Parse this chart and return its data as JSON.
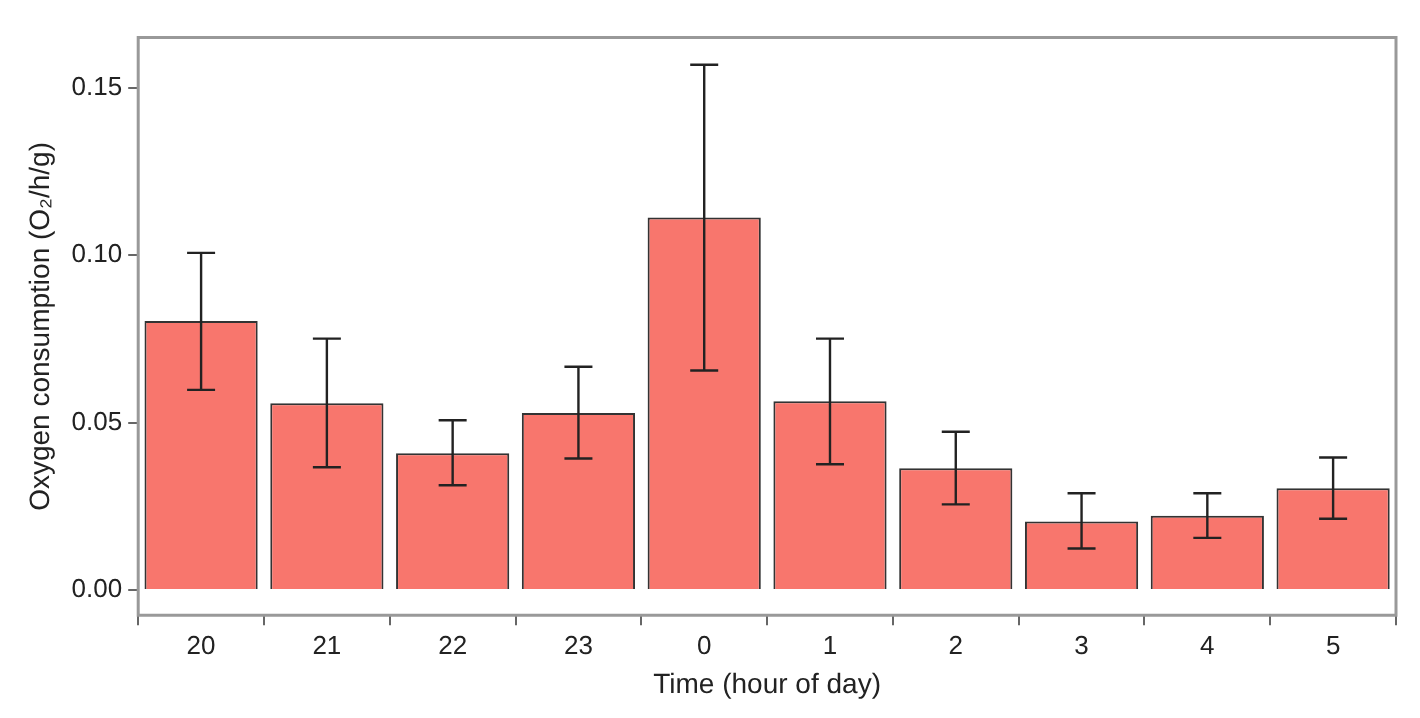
{
  "chart_data": {
    "type": "bar",
    "xlabel": "Time (hour of day)",
    "ylabel": "Oxygen consumption (O₂/h/g)",
    "categories": [
      "20",
      "21",
      "22",
      "23",
      "0",
      "1",
      "2",
      "3",
      "4",
      "5"
    ],
    "values": [
      0.0804,
      0.0558,
      0.0409,
      0.0529,
      0.1113,
      0.0564,
      0.0364,
      0.0205,
      0.0222,
      0.0304
    ],
    "errors": [
      [
        0.0598,
        0.1007
      ],
      [
        0.0367,
        0.0751
      ],
      [
        0.0313,
        0.0507
      ],
      [
        0.0393,
        0.0667
      ],
      [
        0.0656,
        0.1569
      ],
      [
        0.0376,
        0.0751
      ],
      [
        0.0256,
        0.0473
      ],
      [
        0.0124,
        0.0289
      ],
      [
        0.0156,
        0.0289
      ],
      [
        0.0213,
        0.0396
      ]
    ],
    "color": "#f8766d",
    "ylim": [
      -0.0075,
      0.165
    ],
    "yticks": [
      {
        "value": 0,
        "label": "0.00"
      },
      {
        "value": 0.05,
        "label": "0.05"
      },
      {
        "value": 0.1,
        "label": "0.10"
      },
      {
        "value": 0.15,
        "label": "0.15"
      }
    ]
  }
}
